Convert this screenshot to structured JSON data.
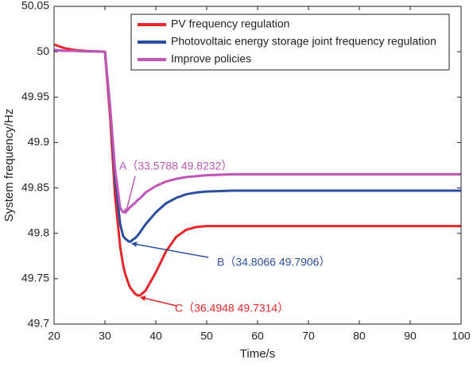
{
  "chart_data": {
    "type": "line",
    "xlabel": "Time/s",
    "ylabel": "System frequency/Hz",
    "x": [
      20,
      22,
      24,
      26,
      28,
      30,
      31,
      32,
      33,
      33.5788,
      34,
      34.8066,
      35,
      36,
      36.4948,
      37,
      38,
      40,
      42,
      44,
      46,
      48,
      50,
      55,
      60,
      70,
      80,
      90,
      100
    ],
    "series": [
      {
        "name": "PV frequency regulation",
        "color": "#e8262a",
        "values": [
          50.008,
          50.004,
          50.002,
          50.001,
          50.0005,
          50.0,
          49.93,
          49.84,
          49.785,
          49.765,
          49.755,
          49.742,
          49.74,
          49.733,
          49.7314,
          49.732,
          49.737,
          49.757,
          49.78,
          49.796,
          49.804,
          49.807,
          49.808,
          49.808,
          49.808,
          49.808,
          49.808,
          49.808,
          49.808
        ]
      },
      {
        "name": "Photovoltaic energy storage joint frequency regulation",
        "color": "#2b4ea0",
        "values": [
          50.002,
          50.001,
          50.001,
          50.0005,
          50.0003,
          50.0,
          49.94,
          49.86,
          49.81,
          49.797,
          49.794,
          49.7906,
          49.791,
          49.795,
          49.798,
          49.802,
          49.81,
          49.823,
          49.833,
          49.839,
          49.843,
          49.845,
          49.846,
          49.847,
          49.847,
          49.847,
          49.847,
          49.847,
          49.847
        ]
      },
      {
        "name": "Improve policies",
        "color": "#bf55b5",
        "values": [
          50.002,
          50.001,
          50.001,
          50.0005,
          50.0003,
          50.0,
          49.94,
          49.87,
          49.828,
          49.8232,
          49.824,
          49.828,
          49.829,
          49.834,
          49.837,
          49.839,
          49.845,
          49.852,
          49.857,
          49.86,
          49.862,
          49.863,
          49.864,
          49.865,
          49.865,
          49.865,
          49.865,
          49.865,
          49.865
        ]
      }
    ],
    "annotations": [
      {
        "text": "A（33.5788 49.8232）",
        "color": "#bf55b5"
      },
      {
        "text": "B（34.8066 49.7906）",
        "color": "#2b4ea0"
      },
      {
        "text": "C（36.4948 49.7314）",
        "color": "#e8262a"
      }
    ],
    "xlim": [
      20,
      100
    ],
    "xticks": [
      20,
      30,
      40,
      50,
      60,
      70,
      80,
      90,
      100
    ],
    "ylim": [
      49.7,
      50.05
    ],
    "yticks": [
      49.7,
      49.75,
      49.8,
      49.85,
      49.9,
      49.95,
      50,
      50.05
    ],
    "grid": false,
    "legend": "upper right"
  }
}
